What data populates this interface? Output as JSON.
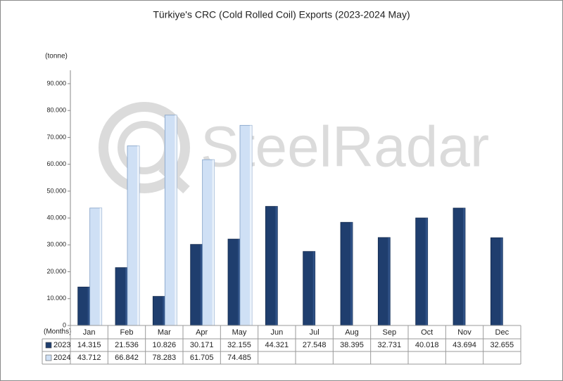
{
  "chart_data": {
    "type": "bar",
    "title": "Türkiye's CRC (Cold Rolled Coil) Exports (2023-2024 May)",
    "y_label": "(tonne)",
    "x_label": "(Months)",
    "watermark": "SteelRadar",
    "categories": [
      "Jan",
      "Feb",
      "Mar",
      "Apr",
      "May",
      "Jun",
      "Jul",
      "Aug",
      "Sep",
      "Oct",
      "Nov",
      "Dec"
    ],
    "series": [
      {
        "name": "2023",
        "color": "#1f3e6e",
        "values": [
          14315,
          21536,
          10826,
          30171,
          32155,
          44321,
          27548,
          38395,
          32731,
          40018,
          43694,
          32655
        ],
        "value_labels": [
          "14.315",
          "21.536",
          "10.826",
          "30.171",
          "32.155",
          "44.321",
          "27.548",
          "38.395",
          "32.731",
          "40.018",
          "43.694",
          "32.655"
        ]
      },
      {
        "name": "2024",
        "color": "#cfe0f5",
        "values": [
          43712,
          66842,
          78283,
          61705,
          74485,
          null,
          null,
          null,
          null,
          null,
          null,
          null
        ],
        "value_labels": [
          "43.712",
          "66.842",
          "78.283",
          "61.705",
          "74.485",
          null,
          null,
          null,
          null,
          null,
          null,
          null
        ]
      }
    ],
    "ylim": [
      0,
      90000
    ],
    "yticks": [
      0,
      {
        "value": 10000,
        "label": "10.000"
      },
      {
        "value": 20000,
        "label": "20.000"
      },
      {
        "value": 30000,
        "label": "30.000"
      },
      {
        "value": 40000,
        "label": "40.000"
      },
      {
        "value": 50000,
        "label": "50.000"
      },
      {
        "value": 60000,
        "label": "60.000"
      },
      {
        "value": 70000,
        "label": "70.000"
      },
      {
        "value": 80000,
        "label": "80.000"
      },
      {
        "value": 90000,
        "label": "90.000"
      }
    ],
    "grid": false
  }
}
